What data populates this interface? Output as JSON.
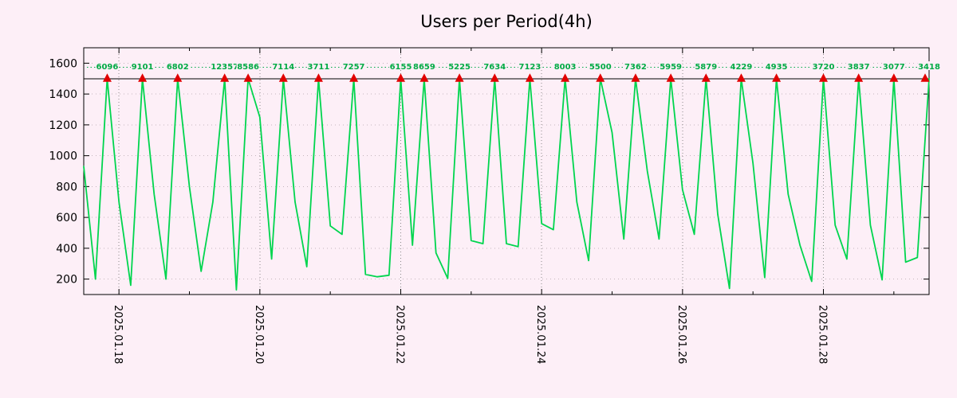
{
  "title": "Users per Period(4h)",
  "colors": {
    "background": "#fdeff7",
    "line": "#00d54e",
    "peak_label": "#00ab45",
    "marker": "#e10000",
    "axis": "#000000",
    "grid_major": "#8a8a8a",
    "grid_minor": "#c4b6bd"
  },
  "chart_data": {
    "type": "line",
    "title": "Users per Period(4h)",
    "series_name": "Users",
    "period_hours": 4,
    "x_start": "2025.01.17 12:00",
    "x_end": "2025.01.29 12:00",
    "ylim": [
      100,
      1700
    ],
    "yticks": [
      200,
      400,
      600,
      800,
      1000,
      1200,
      1400,
      1600
    ],
    "xticks": [
      "2025.01.18",
      "2025.01.20",
      "2025.01.22",
      "2025.01.24",
      "2025.01.26",
      "2025.01.28"
    ],
    "clip_level": 1500,
    "grid": true,
    "legend": "none",
    "values": [
      930,
      200,
      1500,
      700,
      160,
      1500,
      750,
      200,
      1500,
      800,
      250,
      700,
      1500,
      130,
      1500,
      1250,
      330,
      1500,
      700,
      280,
      1500,
      545,
      490,
      1500,
      230,
      215,
      225,
      1500,
      420,
      1500,
      370,
      205,
      1500,
      450,
      430,
      1500,
      430,
      410,
      1500,
      560,
      520,
      1500,
      700,
      320,
      1500,
      1150,
      460,
      1500,
      900,
      460,
      1500,
      780,
      490,
      1500,
      620,
      140,
      1500,
      950,
      210,
      1500,
      750,
      420,
      185,
      1500,
      550,
      330,
      1500,
      550,
      195,
      1500,
      310,
      340,
      1500
    ],
    "peaks": [
      {
        "i": 2,
        "v": "6096"
      },
      {
        "i": 5,
        "v": "9101"
      },
      {
        "i": 8,
        "v": "6802"
      },
      {
        "i": 12,
        "v": "12357"
      },
      {
        "i": 14,
        "v": "8586"
      },
      {
        "i": 17,
        "v": "7114"
      },
      {
        "i": 20,
        "v": "3711"
      },
      {
        "i": 23,
        "v": "7257"
      },
      {
        "i": 27,
        "v": "6155"
      },
      {
        "i": 29,
        "v": "8659"
      },
      {
        "i": 32,
        "v": "5225"
      },
      {
        "i": 35,
        "v": "7634"
      },
      {
        "i": 38,
        "v": "7123"
      },
      {
        "i": 41,
        "v": "8003"
      },
      {
        "i": 44,
        "v": "5500"
      },
      {
        "i": 47,
        "v": "7362"
      },
      {
        "i": 50,
        "v": "5959"
      },
      {
        "i": 53,
        "v": "5879"
      },
      {
        "i": 56,
        "v": "4229"
      },
      {
        "i": 59,
        "v": "4935"
      },
      {
        "i": 63,
        "v": "3720"
      },
      {
        "i": 66,
        "v": "3837"
      },
      {
        "i": 69,
        "v": "3077"
      },
      {
        "i": 72,
        "v": "3418"
      }
    ]
  }
}
